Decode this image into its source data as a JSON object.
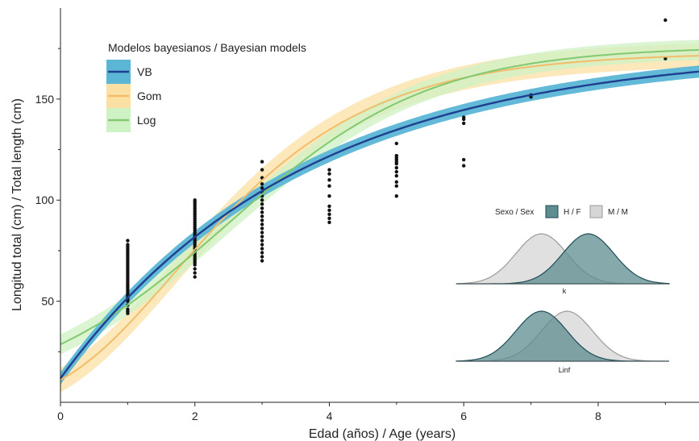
{
  "chart_data": {
    "type": "scatter",
    "xlabel": "Edad (años) / Age (years)",
    "ylabel": "Longitud total (cm) / Total length (cm)",
    "xlim": [
      0,
      9.5
    ],
    "ylim": [
      0,
      195
    ],
    "x_ticks": [
      0,
      2,
      4,
      6,
      8
    ],
    "y_ticks": [
      50,
      100,
      150
    ],
    "grid": false,
    "legend": {
      "title": "Modelos bayesianos / Bayesian models",
      "placement": "top-left",
      "entries": [
        {
          "label": "VB",
          "line_color": "#1f3f8f",
          "band_color": "#5bb6d6"
        },
        {
          "label": "Gom",
          "line_color": "#f2bd6b",
          "band_color": "#fbe0a3"
        },
        {
          "label": "Log",
          "line_color": "#82c972",
          "band_color": "#cff2c4"
        }
      ]
    },
    "models": [
      {
        "name": "VB",
        "type": "von_bertalanffy",
        "Linf": 175,
        "k": 0.28,
        "t0": -0.25,
        "band": 3
      },
      {
        "name": "Gom",
        "type": "gompertz",
        "Linf": 173,
        "a": 2.75,
        "b": 0.6,
        "band": 6
      },
      {
        "name": "Log",
        "type": "logistic",
        "Linf": 176,
        "k": 0.66,
        "t0": 2.48,
        "band": 5
      }
    ],
    "observations": [
      {
        "age": 1,
        "lengths": [
          44,
          45,
          46,
          48,
          50,
          51,
          52,
          53,
          54,
          55,
          56,
          57,
          58,
          59,
          60,
          61,
          62,
          63,
          64,
          65,
          66,
          67,
          68,
          69,
          70,
          71,
          72,
          73,
          74,
          75,
          76,
          77,
          78,
          80
        ]
      },
      {
        "age": 2,
        "lengths": [
          62,
          64,
          66,
          68,
          69,
          70,
          71,
          72,
          73,
          74,
          75,
          76,
          77,
          78,
          79,
          80,
          81,
          82,
          83,
          84,
          85,
          86,
          87,
          88,
          89,
          90,
          91,
          92,
          93,
          94,
          95,
          96,
          97,
          98,
          99,
          100
        ]
      },
      {
        "age": 3,
        "lengths": [
          70,
          72,
          74,
          76,
          78,
          80,
          82,
          84,
          86,
          88,
          90,
          92,
          94,
          96,
          98,
          100,
          102,
          104,
          106,
          108,
          111,
          115,
          119
        ]
      },
      {
        "age": 4,
        "lengths": [
          89,
          91,
          93,
          95,
          97,
          102,
          107,
          110,
          113,
          115
        ]
      },
      {
        "age": 5,
        "lengths": [
          102,
          107,
          109,
          112,
          114,
          116,
          118,
          119,
          120,
          121,
          122,
          128
        ]
      },
      {
        "age": 6,
        "lengths": [
          117,
          120,
          138,
          140,
          141
        ]
      },
      {
        "age": 7,
        "lengths": [
          151,
          152
        ]
      },
      {
        "age": 9,
        "lengths": [
          170,
          189
        ]
      }
    ],
    "inset": {
      "legend": {
        "title": "Sexo / Sex",
        "entries": [
          {
            "label": "H / F",
            "fill": "#5e8c8f",
            "stroke": "#1e4d55"
          },
          {
            "label": "M / M",
            "fill": "#d6d6d6",
            "stroke": "#9a9a9a"
          }
        ]
      },
      "panels": [
        {
          "label": "k",
          "F": {
            "mean": 0.62,
            "sd": 0.12
          },
          "M": {
            "mean": 0.4,
            "sd": 0.12
          }
        },
        {
          "label": "Linf",
          "F": {
            "mean": 0.4,
            "sd": 0.12
          },
          "M": {
            "mean": 0.52,
            "sd": 0.12
          }
        }
      ]
    }
  }
}
